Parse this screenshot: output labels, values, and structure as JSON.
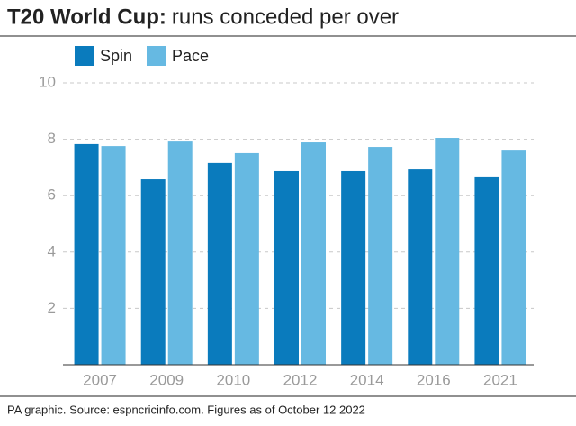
{
  "chart_data": {
    "type": "bar",
    "title": "T20 World Cup:",
    "subtitle": "runs conceded per over",
    "source": "PA graphic. Source: espncricinfo.com. Figures as of October 12 2022",
    "categories": [
      "2007",
      "2009",
      "2010",
      "2012",
      "2014",
      "2016",
      "2021"
    ],
    "series": [
      {
        "name": "Spin",
        "color": "#0a7bbd",
        "values": [
          7.83,
          6.58,
          7.16,
          6.87,
          6.87,
          6.93,
          6.68
        ]
      },
      {
        "name": "Pace",
        "color": "#66b9e2",
        "values": [
          7.76,
          7.92,
          7.51,
          7.89,
          7.73,
          8.05,
          7.6
        ]
      }
    ],
    "ylim": [
      0,
      10
    ],
    "yticks": [
      2,
      4,
      6,
      8,
      10
    ],
    "grid": true
  }
}
